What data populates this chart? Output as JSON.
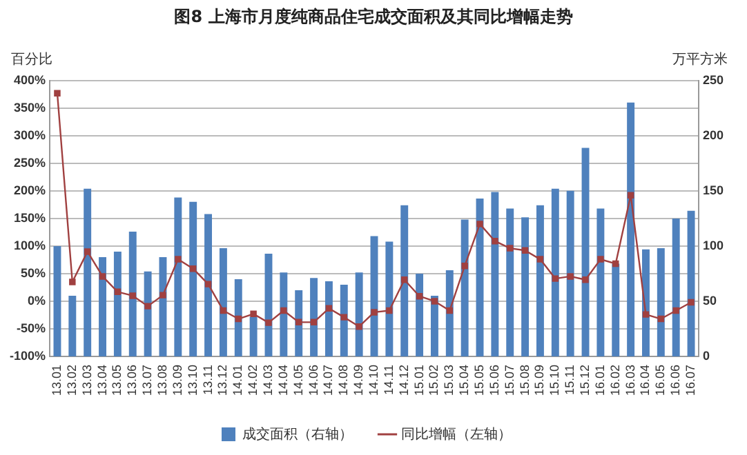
{
  "chart_data": {
    "type": "bar",
    "title": "图8  上海市月度纯商品住宅成交面积及其同比增幅走势",
    "ylabel": "百分比",
    "y2label": "万平方米",
    "categories": [
      "13.01",
      "13.02",
      "13.03",
      "13.04",
      "13.05",
      "13.06",
      "13.07",
      "13.08",
      "13.09",
      "13.10",
      "13.11",
      "13.12",
      "14.01",
      "14.02",
      "14.03",
      "14.04",
      "14.05",
      "14.06",
      "14.07",
      "14.08",
      "14.09",
      "14.10",
      "14.11",
      "14.12",
      "15.01",
      "15.02",
      "15.03",
      "15.04",
      "15.05",
      "15.06",
      "15.07",
      "15.08",
      "15.09",
      "15.10",
      "15.11",
      "15.12",
      "16.01",
      "16.02",
      "16.03",
      "16.04",
      "16.05",
      "16.06",
      "16.07"
    ],
    "series": [
      {
        "name": "成交面积（右轴）",
        "axis": "y2",
        "color": "#4f81bd",
        "values": [
          100,
          55,
          152,
          90,
          95,
          113,
          77,
          90,
          144,
          140,
          129,
          98,
          70,
          36,
          93,
          76,
          60,
          71,
          68,
          65,
          76,
          109,
          104,
          137,
          75,
          55,
          78,
          124,
          143,
          149,
          134,
          126,
          137,
          152,
          150,
          189,
          134,
          84,
          230,
          97,
          98,
          125,
          132
        ]
      },
      {
        "name": "同比增幅（左轴）",
        "type": "line",
        "axis": "y",
        "color": "#a04040",
        "marker": "square",
        "values": [
          377,
          35,
          90,
          45,
          17,
          10,
          -9,
          11,
          76,
          59,
          31,
          -17,
          -32,
          -23,
          -39,
          -17,
          -38,
          -38,
          -13,
          -29,
          -46,
          -20,
          -17,
          39,
          9,
          0,
          -17,
          64,
          140,
          109,
          96,
          92,
          76,
          41,
          45,
          39,
          76,
          68,
          192,
          -24,
          -32,
          -17,
          -2
        ]
      }
    ],
    "ylim": [
      -100,
      400
    ],
    "yticks": [
      {
        "value": -100,
        "label": "-100%"
      },
      {
        "value": -50,
        "label": "-50%"
      },
      {
        "value": 0,
        "label": "0%"
      },
      {
        "value": 50,
        "label": "50%"
      },
      {
        "value": 100,
        "label": "100%"
      },
      {
        "value": 150,
        "label": "150%"
      },
      {
        "value": 200,
        "label": "200%"
      },
      {
        "value": 250,
        "label": "250%"
      },
      {
        "value": 300,
        "label": "300%"
      },
      {
        "value": 350,
        "label": "350%"
      },
      {
        "value": 400,
        "label": "400%"
      }
    ],
    "y2lim": [
      0,
      250
    ],
    "y2ticks": [
      0,
      50,
      100,
      150,
      200,
      250
    ],
    "grid": "y",
    "legend": "bottom"
  }
}
